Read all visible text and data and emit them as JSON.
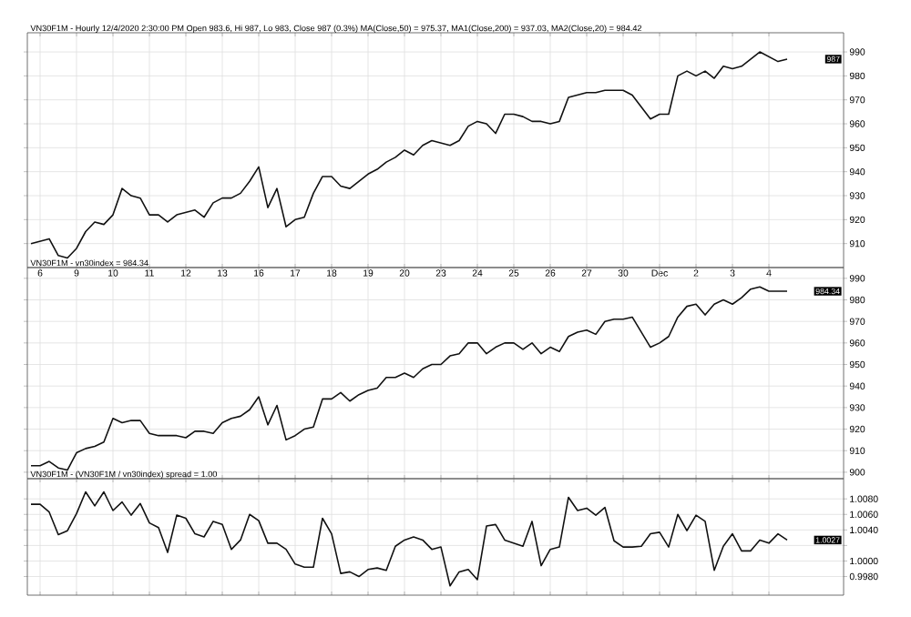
{
  "chart_data": [
    {
      "type": "line",
      "title": "VN30F1M - Hourly 12/4/2020 2:30:00 PM Open 983.6, Hi 987, Lo 983, Close 987 (0.3%) MA(Close,50) = 975.37, MA1(Close,200) = 937.03, MA2(Close,20) = 984.42",
      "color": "#111111",
      "grid": true,
      "categories": [
        null,
        "6",
        null,
        null,
        null,
        "9",
        null,
        null,
        null,
        "10",
        null,
        null,
        null,
        "11",
        null,
        null,
        null,
        "12",
        null,
        null,
        null,
        "13",
        null,
        null,
        null,
        "16",
        null,
        null,
        null,
        "17",
        null,
        null,
        null,
        "18",
        null,
        null,
        null,
        "19",
        null,
        null,
        null,
        "20",
        null,
        null,
        null,
        "23",
        null,
        null,
        null,
        "24",
        null,
        null,
        null,
        "25",
        null,
        null,
        null,
        "26",
        null,
        null,
        null,
        "27",
        null,
        null,
        null,
        "30",
        null,
        null,
        null,
        "Dec",
        null,
        null,
        null,
        "2",
        null,
        null,
        null,
        "3",
        null,
        null,
        null,
        "4",
        null,
        null
      ],
      "values": [
        910,
        911,
        912,
        905,
        904,
        908,
        915,
        919,
        918,
        922,
        933,
        930,
        929,
        922,
        922,
        919,
        922,
        923,
        924,
        921,
        927,
        929,
        929,
        931,
        936,
        942,
        925,
        933,
        917,
        920,
        921,
        931,
        938,
        938,
        934,
        933,
        936,
        939,
        941,
        944,
        946,
        949,
        947,
        951,
        953,
        952,
        951,
        953,
        959,
        961,
        960,
        956,
        964,
        964,
        963,
        961,
        961,
        960,
        961,
        971,
        972,
        973,
        973,
        974,
        974,
        974,
        972,
        967,
        962,
        964,
        964,
        980,
        982,
        980,
        982,
        979,
        984,
        983,
        984,
        987,
        990,
        988,
        986,
        987
      ],
      "ylim": [
        900,
        998
      ],
      "yticks": [
        910,
        920,
        930,
        940,
        950,
        960,
        970,
        980,
        990
      ],
      "annotations": [
        "987"
      ]
    },
    {
      "type": "line",
      "title": "VN30F1M - vn30index = 984.34",
      "color": "#111111",
      "grid": true,
      "tick_labels": "y",
      "categories": [
        null,
        null,
        null,
        null,
        null,
        null,
        null,
        null,
        null,
        null,
        null,
        null,
        null,
        null,
        null,
        null,
        null,
        null,
        null,
        null,
        null,
        null,
        null,
        null,
        null,
        null,
        null,
        null,
        null,
        null,
        null,
        null,
        null,
        null,
        null,
        null,
        null,
        null,
        null,
        null,
        null,
        null,
        null,
        null,
        null,
        null,
        null,
        null,
        null,
        null,
        null,
        null,
        null,
        null,
        null,
        null,
        null,
        null,
        null,
        null,
        null,
        null,
        null,
        null,
        null,
        null,
        null,
        null,
        null,
        null,
        null,
        null,
        null,
        null,
        null,
        null,
        null,
        null,
        null,
        null,
        null,
        null,
        null,
        null
      ],
      "values": [
        903,
        903,
        905,
        902,
        901,
        909,
        911,
        912,
        914,
        925,
        923,
        924,
        924,
        918,
        917,
        917,
        917,
        916,
        919,
        919,
        918,
        923,
        925,
        926,
        929,
        935,
        922,
        931,
        915,
        917,
        920,
        921,
        934,
        934,
        937,
        933,
        936,
        938,
        939,
        944,
        944,
        946,
        944,
        948,
        950,
        950,
        954,
        955,
        960,
        960,
        955,
        958,
        960,
        960,
        957,
        960,
        955,
        958,
        956,
        963,
        965,
        966,
        964,
        970,
        971,
        971,
        972,
        965,
        958,
        960,
        963,
        972,
        977,
        978,
        973,
        978,
        980,
        978,
        981,
        985,
        986,
        984,
        984,
        984
      ],
      "ylim": [
        897,
        995
      ],
      "yticks": [
        900,
        910,
        920,
        930,
        940,
        950,
        960,
        970,
        980,
        990
      ],
      "annotations": [
        "984.34"
      ]
    },
    {
      "type": "line",
      "title": "VN30F1M - (VN30F1M / vn30index) spread = 1.00",
      "color": "#111111",
      "grid": true,
      "tick_labels": "y",
      "categories": [
        null,
        null,
        null,
        null,
        null,
        null,
        null,
        null,
        null,
        null,
        null,
        null,
        null,
        null,
        null,
        null,
        null,
        null,
        null,
        null,
        null,
        null,
        null,
        null,
        null,
        null,
        null,
        null,
        null,
        null,
        null,
        null,
        null,
        null,
        null,
        null,
        null,
        null,
        null,
        null,
        null,
        null,
        null,
        null,
        null,
        null,
        null,
        null,
        null,
        null,
        null,
        null,
        null,
        null,
        null,
        null,
        null,
        null,
        null,
        null,
        null,
        null,
        null,
        null,
        null,
        null,
        null,
        null,
        null,
        null,
        null,
        null,
        null,
        null,
        null,
        null,
        null,
        null,
        null,
        null,
        null,
        null,
        null,
        null
      ],
      "values": [
        1.0073,
        1.0073,
        1.0063,
        1.0034,
        1.0039,
        1.0061,
        1.0089,
        1.0071,
        1.0089,
        1.0065,
        1.0076,
        1.0059,
        1.0074,
        1.0049,
        1.0043,
        1.0011,
        1.0059,
        1.0055,
        1.0035,
        1.0031,
        1.0051,
        1.0047,
        1.0015,
        1.0027,
        1.006,
        1.0052,
        1.0023,
        1.0023,
        1.0015,
        0.9996,
        0.9992,
        0.9992,
        1.0055,
        1.0035,
        0.9984,
        0.9986,
        0.998,
        0.9989,
        0.9991,
        0.9988,
        1.0019,
        1.0027,
        1.0031,
        1.0027,
        1.0015,
        1.0018,
        0.9968,
        0.9986,
        0.9989,
        0.9976,
        1.0045,
        1.0047,
        1.0027,
        1.0023,
        1.0019,
        1.0051,
        0.9994,
        1.0015,
        1.0018,
        1.0082,
        1.0065,
        1.0068,
        1.0059,
        1.0069,
        1.0026,
        1.0018,
        1.0018,
        1.0019,
        1.0035,
        1.0037,
        1.0018,
        1.006,
        1.0039,
        1.0059,
        1.0051,
        0.9988,
        1.0019,
        1.0035,
        1.0013,
        1.0013,
        1.0027,
        1.0023,
        1.0035,
        1.0027
      ],
      "ylim": [
        0.9956,
        1.0106
      ],
      "yticks": [
        {
          "value": 0.998,
          "label": "0.9980"
        },
        {
          "value": 1.0,
          "label": "1.0000"
        },
        {
          "value": 1.002,
          "label": null
        },
        {
          "value": 1.004,
          "label": "1.0040"
        },
        {
          "value": 1.006,
          "label": "1.0060"
        },
        {
          "value": 1.008,
          "label": "1.0080"
        }
      ],
      "annotations": [
        "1.0027"
      ]
    }
  ]
}
